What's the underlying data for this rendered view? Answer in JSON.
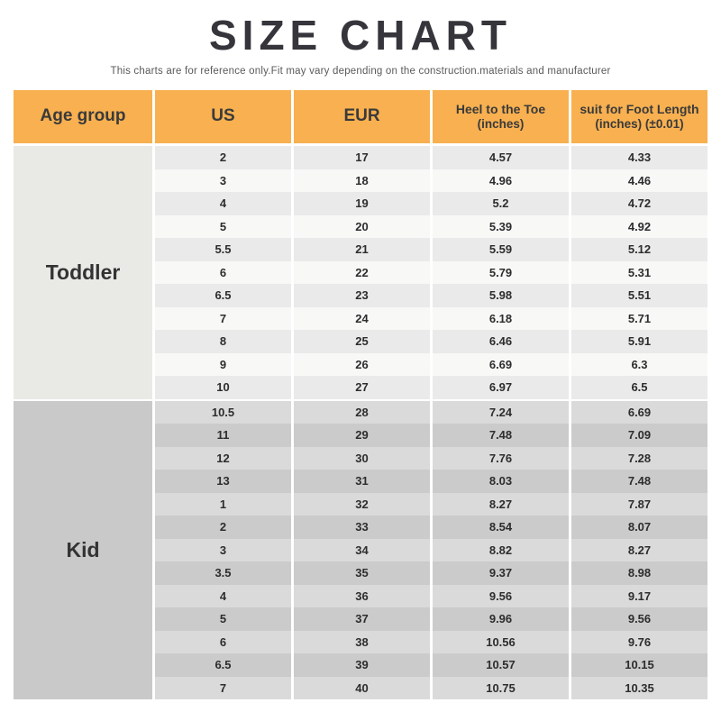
{
  "chart_data": {
    "type": "table",
    "title": "SIZE CHART",
    "subtitle": "This charts are for reference only.Fit may vary depending on the construction.materials and manufacturer",
    "headers": [
      {
        "key": "age-group",
        "line1": "Age group",
        "line2": ""
      },
      {
        "key": "us",
        "line1": "US",
        "line2": ""
      },
      {
        "key": "eur",
        "line1": "EUR",
        "line2": ""
      },
      {
        "key": "heel-to-toe",
        "line1": "Heel to the Toe",
        "line2": "(inches)"
      },
      {
        "key": "foot-length",
        "line1": "suit for Foot Length",
        "line2": "(inches)  (±0.01)"
      }
    ],
    "groups": [
      {
        "age_group": "Toddler",
        "rows": [
          [
            "2",
            "17",
            "4.57",
            "4.33"
          ],
          [
            "3",
            "18",
            "4.96",
            "4.46"
          ],
          [
            "4",
            "19",
            "5.2",
            "4.72"
          ],
          [
            "5",
            "20",
            "5.39",
            "4.92"
          ],
          [
            "5.5",
            "21",
            "5.59",
            "5.12"
          ],
          [
            "6",
            "22",
            "5.79",
            "5.31"
          ],
          [
            "6.5",
            "23",
            "5.98",
            "5.51"
          ],
          [
            "7",
            "24",
            "6.18",
            "5.71"
          ],
          [
            "8",
            "25",
            "6.46",
            "5.91"
          ],
          [
            "9",
            "26",
            "6.69",
            "6.3"
          ],
          [
            "10",
            "27",
            "6.97",
            "6.5"
          ]
        ]
      },
      {
        "age_group": "Kid",
        "rows": [
          [
            "10.5",
            "28",
            "7.24",
            "6.69"
          ],
          [
            "11",
            "29",
            "7.48",
            "7.09"
          ],
          [
            "12",
            "30",
            "7.76",
            "7.28"
          ],
          [
            "13",
            "31",
            "8.03",
            "7.48"
          ],
          [
            "1",
            "32",
            "8.27",
            "7.87"
          ],
          [
            "2",
            "33",
            "8.54",
            "8.07"
          ],
          [
            "3",
            "34",
            "8.82",
            "8.27"
          ],
          [
            "3.5",
            "35",
            "9.37",
            "8.98"
          ],
          [
            "4",
            "36",
            "9.56",
            "9.17"
          ],
          [
            "5",
            "37",
            "9.96",
            "9.56"
          ],
          [
            "6",
            "38",
            "10.56",
            "9.76"
          ],
          [
            "6.5",
            "39",
            "10.57",
            "10.15"
          ],
          [
            "7",
            "40",
            "10.75",
            "10.35"
          ]
        ]
      }
    ],
    "layout": {
      "legend": "none",
      "grid": "off",
      "column_count": 5,
      "row_count": 24
    }
  },
  "colors": {
    "header_bg": "#F8B050",
    "header_text": "#3A3A3A",
    "title_color": "#35353B",
    "subtitle_color": "#5A5A5A",
    "toddler_age_bg": "#E9E9E6",
    "kid_age_bg": "#C9C9C9",
    "toddler_row_dark": "#EAEAEA",
    "toddler_row_light": "#F8F8F7",
    "kid_row_light": "#DADADA",
    "kid_row_dark": "#CBCBCB",
    "cell_text": "#2D2D2D"
  }
}
